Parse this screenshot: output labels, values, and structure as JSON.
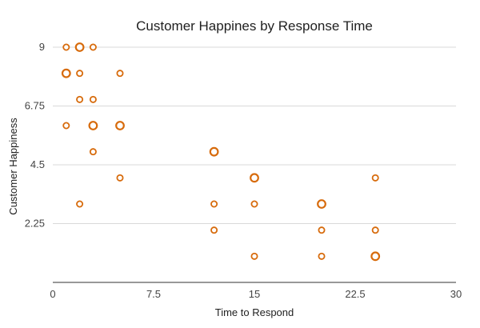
{
  "chart_data": {
    "type": "scatter",
    "title": "Customer Happines by Response Time",
    "xlabel": "Time to Respond",
    "ylabel": "Customer Happiness",
    "xlim": [
      0,
      30
    ],
    "ylim": [
      0,
      9
    ],
    "xticks": [
      "0",
      "7.5",
      "15",
      "22.5",
      "30"
    ],
    "yticks": [
      "2.25",
      "4.5",
      "6.75",
      "9"
    ],
    "ytick_values": [
      2.25,
      4.5,
      6.75,
      9
    ],
    "xtick_values": [
      0,
      7.5,
      15,
      22.5,
      30
    ],
    "grid": true,
    "marker_color": "#d76b0c",
    "points": [
      {
        "x": 1,
        "y": 9,
        "r": "small"
      },
      {
        "x": 2,
        "y": 9,
        "r": "large"
      },
      {
        "x": 3,
        "y": 9,
        "r": "small"
      },
      {
        "x": 1,
        "y": 8,
        "r": "large"
      },
      {
        "x": 2,
        "y": 8,
        "r": "small"
      },
      {
        "x": 5,
        "y": 8,
        "r": "small"
      },
      {
        "x": 2,
        "y": 7,
        "r": "small"
      },
      {
        "x": 3,
        "y": 7,
        "r": "small"
      },
      {
        "x": 1,
        "y": 6,
        "r": "small"
      },
      {
        "x": 3,
        "y": 6,
        "r": "large"
      },
      {
        "x": 5,
        "y": 6,
        "r": "large"
      },
      {
        "x": 3,
        "y": 5,
        "r": "small"
      },
      {
        "x": 12,
        "y": 5,
        "r": "large"
      },
      {
        "x": 5,
        "y": 4,
        "r": "small"
      },
      {
        "x": 15,
        "y": 4,
        "r": "large"
      },
      {
        "x": 24,
        "y": 4,
        "r": "small"
      },
      {
        "x": 2,
        "y": 3,
        "r": "small"
      },
      {
        "x": 12,
        "y": 3,
        "r": "small"
      },
      {
        "x": 15,
        "y": 3,
        "r": "small"
      },
      {
        "x": 20,
        "y": 3,
        "r": "large"
      },
      {
        "x": 12,
        "y": 2,
        "r": "small"
      },
      {
        "x": 20,
        "y": 2,
        "r": "small"
      },
      {
        "x": 24,
        "y": 2,
        "r": "small"
      },
      {
        "x": 15,
        "y": 1,
        "r": "small"
      },
      {
        "x": 20,
        "y": 1,
        "r": "small"
      },
      {
        "x": 24,
        "y": 1,
        "r": "large"
      }
    ]
  }
}
